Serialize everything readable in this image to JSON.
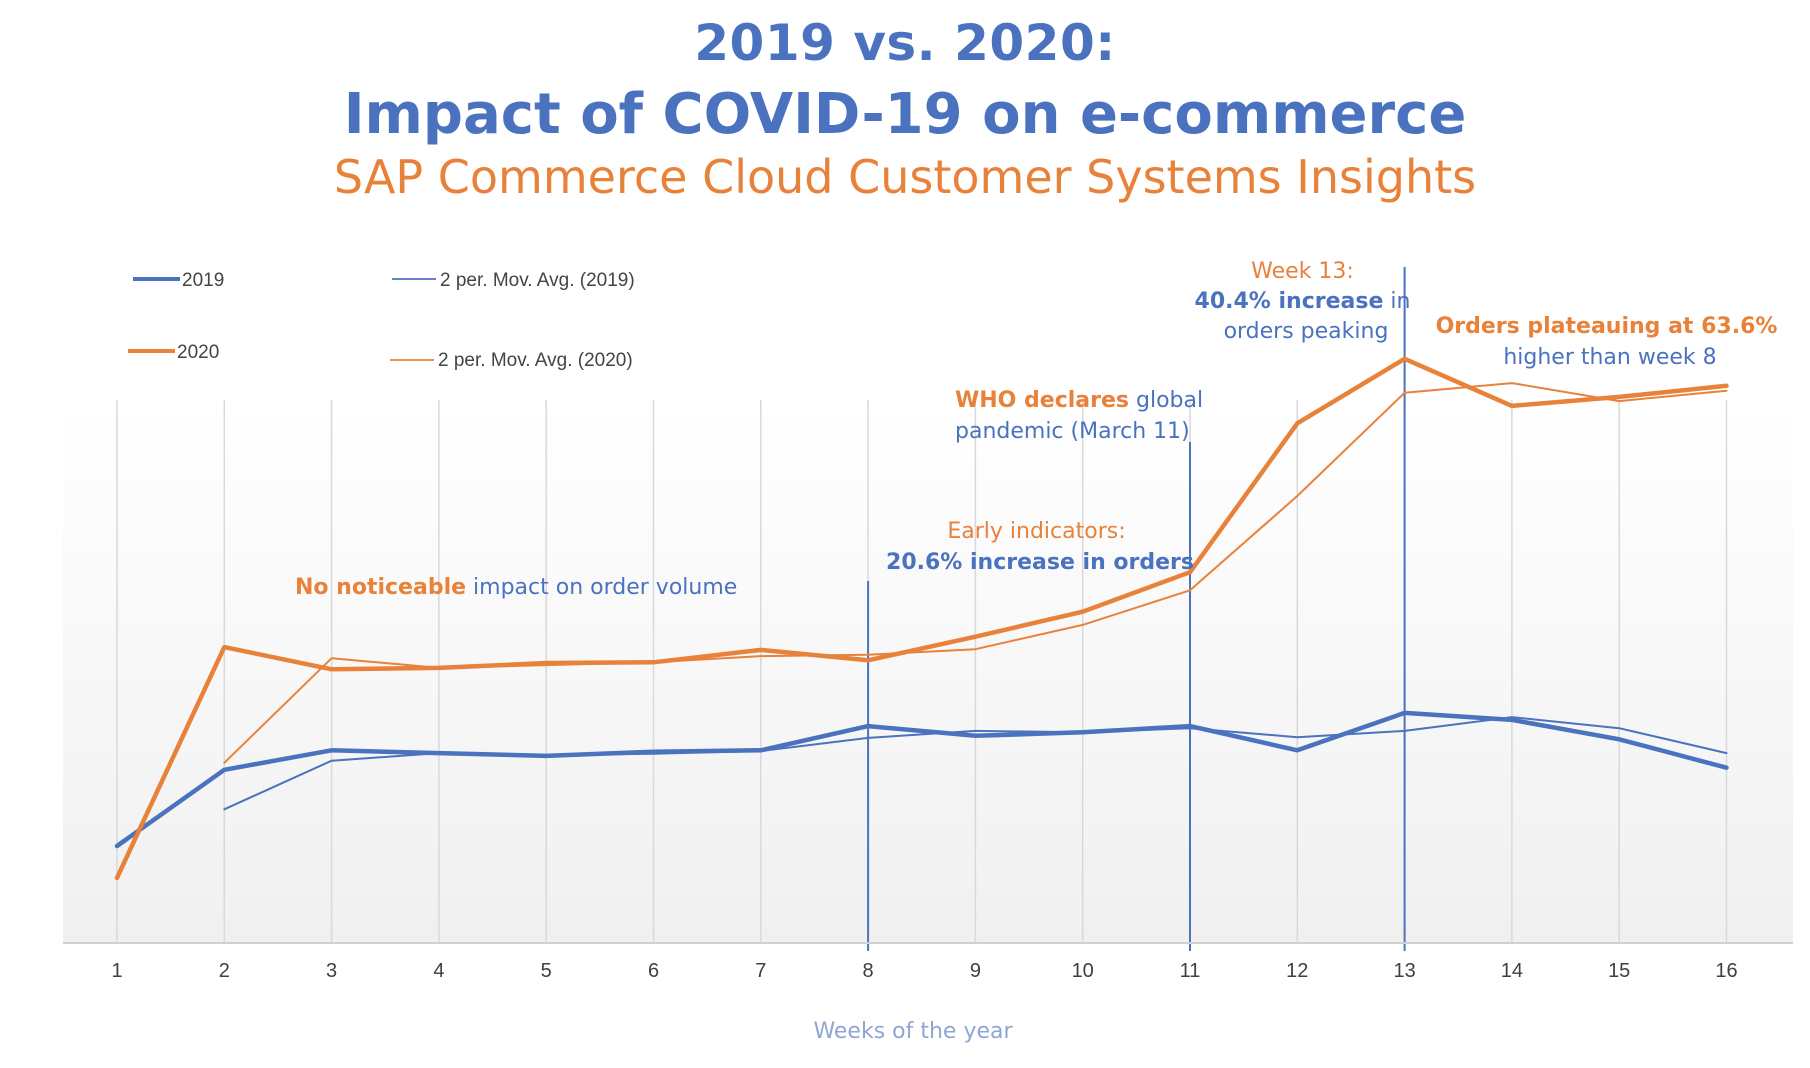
{
  "header": {
    "title_line1": "2019 vs. 2020:",
    "title_line2": "Impact of COVID-19 on e-commerce",
    "subtitle": "SAP Commerce Cloud Customer Systems Insights"
  },
  "colors": {
    "blue": "#4a72bf",
    "orange": "#e8823a",
    "axis_label": "#8ea6d2",
    "gridline": "#d9d9d9"
  },
  "annotations": [
    {
      "week": null,
      "parts": [
        {
          "text": "No noticeable",
          "style": "orange-bold"
        },
        {
          "text": " impact on order volume",
          "style": "blue"
        }
      ]
    },
    {
      "week": 8,
      "lines": [
        [
          {
            "text": "Early indicators:",
            "style": "orange"
          }
        ],
        [
          {
            "text": "20.6% increase in orders",
            "style": "blue-bold"
          }
        ]
      ]
    },
    {
      "week": 11,
      "lines": [
        [
          {
            "text": "WHO declares",
            "style": "orange-bold"
          },
          {
            "text": " global",
            "style": "blue"
          }
        ],
        [
          {
            "text": "pandemic (March 11)",
            "style": "blue"
          }
        ]
      ]
    },
    {
      "week": 13,
      "lines": [
        [
          {
            "text": "Week 13:",
            "style": "orange"
          }
        ],
        [
          {
            "text": "40.4% increase",
            "style": "blue-bold"
          },
          {
            "text": " in",
            "style": "blue"
          }
        ],
        [
          {
            "text": "orders peaking",
            "style": "blue"
          }
        ]
      ]
    },
    {
      "week": null,
      "lines": [
        [
          {
            "text": "Orders plateauing at 63.6%",
            "style": "orange-bold"
          }
        ],
        [
          {
            "text": "higher than week 8",
            "style": "blue"
          }
        ]
      ]
    }
  ],
  "chart_data": {
    "type": "line",
    "title": "2019 vs. 2020: Impact of COVID-19 on e-commerce",
    "subtitle": "SAP Commerce Cloud Customer Systems Insights",
    "xlabel": "Weeks of the year",
    "ylabel": "",
    "x": [
      1,
      2,
      3,
      4,
      5,
      6,
      7,
      8,
      9,
      10,
      11,
      12,
      13,
      14,
      15,
      16
    ],
    "ylim": [
      0,
      100
    ],
    "y_units": "relative order volume index (y-axis unlabeled)",
    "grid": "vertical",
    "legend_position": "top-left",
    "series": [
      {
        "name": "2019",
        "color": "#4a72bf",
        "style": "thick",
        "values": [
          14.0,
          25.0,
          27.8,
          27.4,
          27.0,
          27.6,
          27.8,
          31.3,
          29.9,
          30.4,
          31.3,
          27.8,
          33.2,
          32.2,
          29.4,
          25.3
        ]
      },
      {
        "name": "2020",
        "color": "#e8823a",
        "style": "thick",
        "values": [
          9.4,
          42.7,
          39.5,
          39.7,
          40.4,
          40.5,
          42.3,
          40.8,
          44.2,
          47.8,
          53.5,
          75.0,
          84.3,
          77.5,
          78.8,
          80.4
        ]
      },
      {
        "name": "2 per. Mov. Avg. (2019)",
        "color": "#4a72bf",
        "style": "thin",
        "values": [
          null,
          19.3,
          26.3,
          27.4,
          27.1,
          27.3,
          27.7,
          29.6,
          30.6,
          30.4,
          31.0,
          29.7,
          30.6,
          32.6,
          31.0,
          27.4
        ]
      },
      {
        "name": "2 per. Mov. Avg. (2020)",
        "color": "#e8823a",
        "style": "thin",
        "values": [
          null,
          26.0,
          41.1,
          39.7,
          40.1,
          40.5,
          41.4,
          41.6,
          42.4,
          45.9,
          50.9,
          64.5,
          79.4,
          80.8,
          78.2,
          79.7
        ]
      }
    ],
    "marker_weeks": [
      8,
      11,
      13
    ]
  }
}
